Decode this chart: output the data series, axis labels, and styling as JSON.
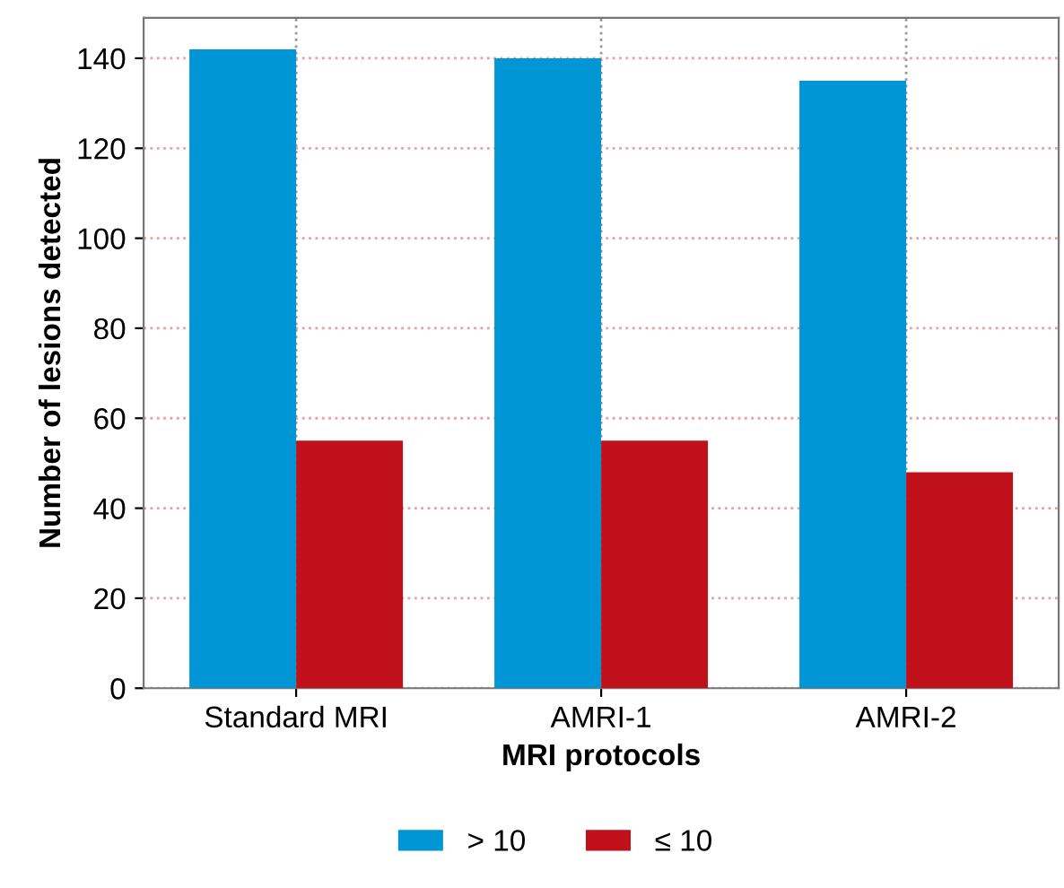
{
  "chart_data": {
    "type": "bar",
    "xlabel": "MRI protocols",
    "ylabel": "Number of lesions detected",
    "categories": [
      "Standard MRI",
      "AMRI-1",
      "AMRI-2"
    ],
    "series": [
      {
        "name": "> 10",
        "color": "#0096d6",
        "values": [
          142,
          140,
          135
        ]
      },
      {
        "name": "≤ 10",
        "color": "#c0111b",
        "values": [
          55,
          55,
          48
        ]
      }
    ],
    "ylim": [
      0,
      149
    ],
    "yticks": [
      0,
      20,
      40,
      60,
      80,
      100,
      120,
      140
    ],
    "grid": true,
    "legend": "bottom"
  }
}
